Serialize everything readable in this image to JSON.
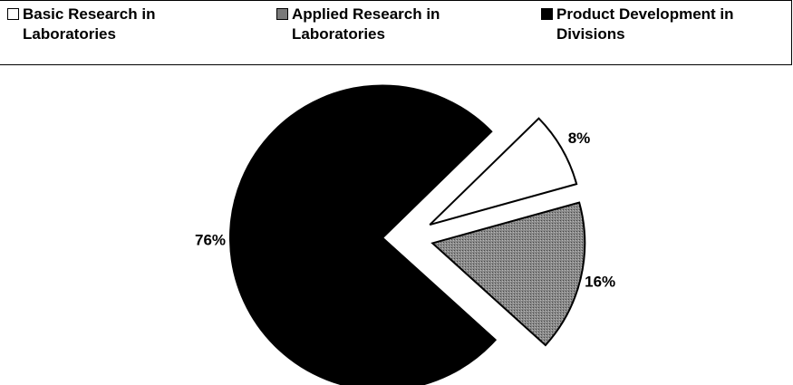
{
  "chart_data": {
    "type": "pie",
    "categories": [
      "Basic Research in Laboratories",
      "Applied Research in Laboratories",
      "Product Development in Divisions"
    ],
    "values": [
      8,
      16,
      76
    ],
    "value_labels": [
      "8%",
      "16%",
      "76%"
    ],
    "colors": [
      "#ffffff",
      "#7a7a7a",
      "#000000"
    ]
  }
}
